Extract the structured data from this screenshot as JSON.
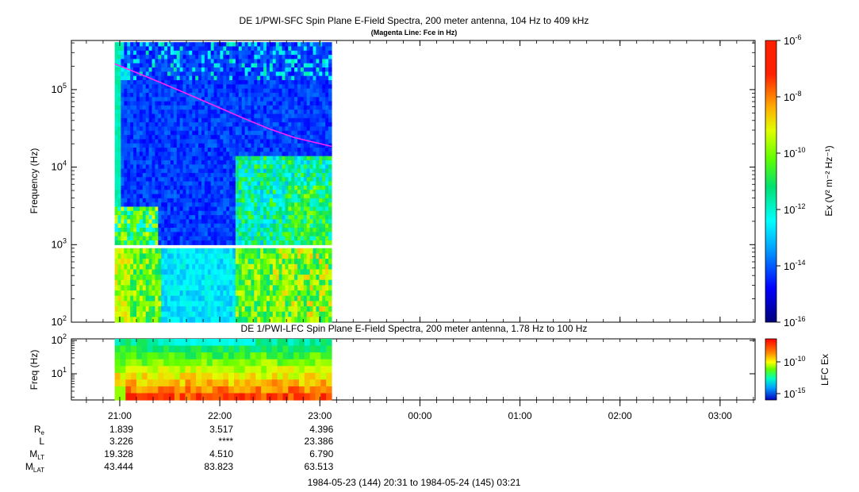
{
  "top_panel": {
    "title": "DE 1/PWI-SFC  Spin Plane E-Field Spectra, 200 meter antenna, 104 Hz to 409 kHz",
    "subtitle": "(Magenta Line: Fce in Hz)",
    "ylabel": "Frequency (Hz)",
    "colorbar_label": "Ex (V² m⁻² Hz⁻¹)"
  },
  "bottom_panel": {
    "title": "DE 1/PWI-LFC  Spin Plane E-Field Spectra, 200 meter antenna, 1.78 Hz to 100 Hz",
    "ylabel": "Freq (Hz)",
    "colorbar_label": "LFC Ex"
  },
  "time_ticks": [
    "21:00",
    "22:00",
    "23:00",
    "00:00",
    "01:00",
    "02:00",
    "03:00"
  ],
  "ephemeris": {
    "labels": [
      "Re",
      "L",
      "MLT",
      "MLAT"
    ],
    "rows": [
      [
        "1.839",
        "3.517",
        "4.396"
      ],
      [
        "3.226",
        "****",
        "23.386"
      ],
      [
        "19.328",
        "4.510",
        "6.790"
      ],
      [
        "43.444",
        "83.823",
        "63.513"
      ]
    ]
  },
  "time_range": "1984-05-23 (144) 20:31 to 1984-05-24 (145) 03:21",
  "colors": {
    "fce_line": "#ff22ff",
    "colormap": [
      "#00008b",
      "#0000ff",
      "#00bfff",
      "#00ffff",
      "#00e08a",
      "#66ff00",
      "#ffff00",
      "#ff9900",
      "#ff0000",
      "#b00000"
    ]
  },
  "chart_data": [
    {
      "type": "heatmap",
      "title": "DE 1/PWI-SFC  Spin Plane E-Field Spectra, 200 meter antenna, 104 Hz to 409 kHz",
      "xlabel": "",
      "ylabel": "Frequency (Hz)",
      "x_range": [
        "1984-05-23 20:31",
        "1984-05-24 03:21"
      ],
      "data_time_range": [
        "20:57",
        "23:07"
      ],
      "y_scale": "log",
      "ylim": [
        100,
        409000
      ],
      "ytick_labels": [
        "10^2",
        "10^3",
        "10^4",
        "10^5"
      ],
      "colorbar": {
        "label": "Ex (V^2 m^-2 Hz^-1)",
        "scale": "log",
        "range": [
          1e-16,
          1e-06
        ],
        "tick_labels": [
          "10^-6",
          "10^-8",
          "10^-10",
          "10^-12",
          "10^-14",
          "10^-16"
        ]
      },
      "series": [
        {
          "name": "Fce",
          "unit": "Hz",
          "time": [
            "20:57",
            "21:15",
            "21:30",
            "21:45",
            "22:00",
            "22:15",
            "22:30",
            "22:45",
            "23:07"
          ],
          "values": [
            215000,
            150000,
            110000,
            80000,
            58000,
            42000,
            31000,
            24000,
            18500
          ]
        }
      ]
    },
    {
      "type": "heatmap",
      "title": "DE 1/PWI-LFC  Spin Plane E-Field Spectra, 200 meter antenna, 1.78 Hz to 100 Hz",
      "xlabel": "",
      "ylabel": "Freq (Hz)",
      "x_range": [
        "1984-05-23 20:31",
        "1984-05-24 03:21"
      ],
      "data_time_range": [
        "20:57",
        "23:07"
      ],
      "y_scale": "log",
      "ylim": [
        1.78,
        100
      ],
      "ytick_labels": [
        "10^1",
        "10^2"
      ],
      "colorbar": {
        "label": "LFC Ex",
        "scale": "log",
        "tick_labels": [
          "10^-10",
          "10^-15"
        ]
      }
    }
  ]
}
